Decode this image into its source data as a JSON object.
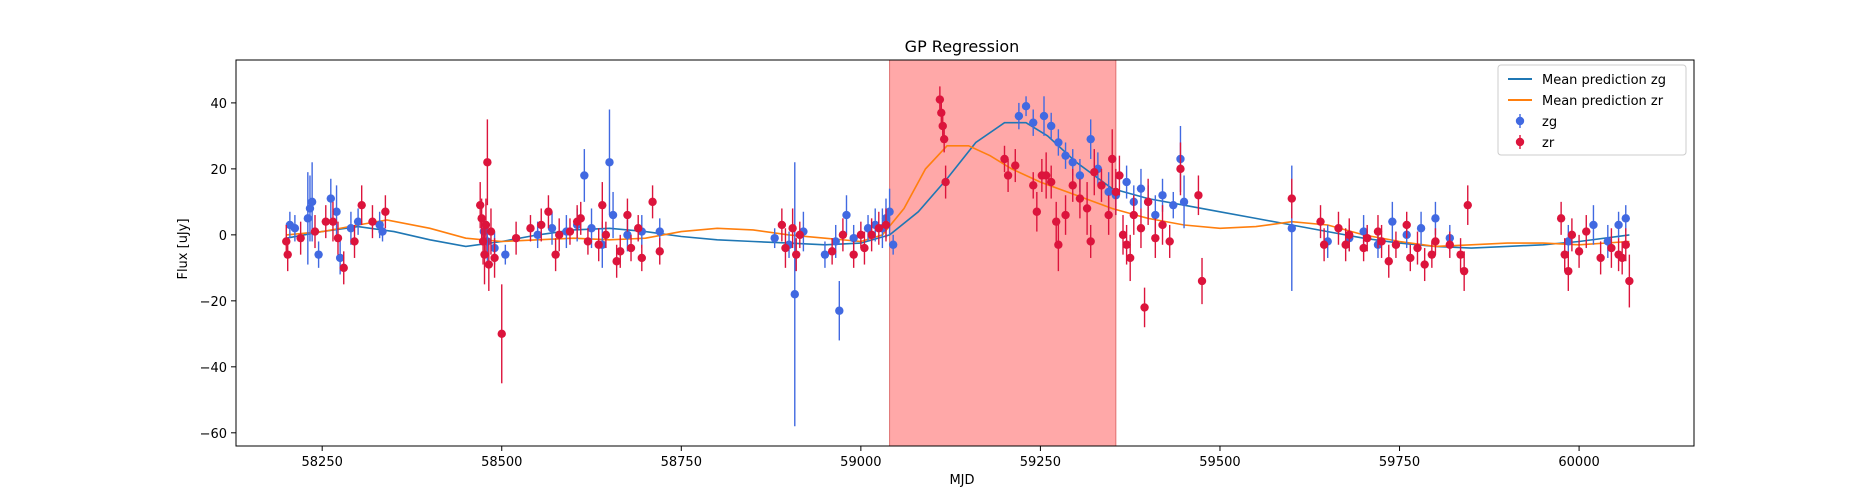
{
  "chart_data": {
    "type": "scatter",
    "title": "GP Regression",
    "xlabel": "MJD",
    "ylabel": "Flux [uJy]",
    "xlim": [
      58130,
      60160
    ],
    "ylim": [
      -64,
      53
    ],
    "xticks": [
      58250,
      58500,
      58750,
      59000,
      59250,
      59500,
      59750,
      60000
    ],
    "yticks": [
      -60,
      -40,
      -20,
      0,
      20,
      40
    ],
    "grid": false,
    "legend_position": "top-right",
    "shaded_region": {
      "x_start": 59040,
      "x_end": 59355,
      "color": "#ff9999"
    },
    "series": [
      {
        "name": "Mean prediction zg",
        "kind": "line",
        "color": "#1f77b4",
        "x": [
          58200,
          58250,
          58300,
          58350,
          58400,
          58450,
          58500,
          58550,
          58600,
          58650,
          58700,
          58750,
          58800,
          58850,
          58900,
          58950,
          59000,
          59040,
          59080,
          59120,
          59160,
          59200,
          59230,
          59260,
          59300,
          59350,
          59400,
          59450,
          59500,
          59550,
          59600,
          59650,
          59700,
          59750,
          59800,
          59850,
          59900,
          59950,
          60000,
          60070
        ],
        "y": [
          -1,
          1,
          2.5,
          1,
          -1.5,
          -3.5,
          -2,
          0,
          1.5,
          2,
          1,
          -0.5,
          -1.5,
          -2,
          -2.5,
          -3,
          -2.5,
          0,
          7,
          17,
          28,
          34,
          34,
          30,
          22,
          14,
          11,
          9,
          7,
          5,
          3,
          1,
          -1,
          -2.5,
          -3.5,
          -4,
          -3.5,
          -3,
          -2,
          0
        ]
      },
      {
        "name": "Mean prediction zr",
        "kind": "line",
        "color": "#ff7f0e",
        "x": [
          58200,
          58250,
          58300,
          58340,
          58400,
          58450,
          58500,
          58550,
          58600,
          58650,
          58700,
          58750,
          58800,
          58850,
          58900,
          58950,
          59000,
          59030,
          59060,
          59090,
          59120,
          59150,
          59180,
          59210,
          59250,
          59300,
          59350,
          59400,
          59450,
          59500,
          59550,
          59600,
          59650,
          59700,
          59750,
          59800,
          59850,
          59900,
          59950,
          60000,
          60070
        ],
        "y": [
          0,
          1,
          3,
          4.5,
          2,
          -1,
          -2,
          -1.5,
          -1,
          -1.5,
          -1,
          1,
          2,
          1.5,
          0,
          -1,
          -2,
          0,
          8,
          20,
          27,
          27,
          24,
          20,
          16,
          12,
          8,
          5,
          3,
          2,
          2.5,
          4,
          3,
          0,
          -2,
          -3.5,
          -3,
          -2.5,
          -2.5,
          -3,
          -2
        ]
      },
      {
        "name": "zg",
        "kind": "errorbar",
        "color": "#4169e1",
        "points": [
          [
            58205,
            3,
            4
          ],
          [
            58212,
            2,
            4
          ],
          [
            58230,
            5,
            14
          ],
          [
            58233,
            8,
            10
          ],
          [
            58236,
            10,
            12
          ],
          [
            58245,
            -6,
            4
          ],
          [
            58262,
            11,
            6
          ],
          [
            58270,
            7,
            8
          ],
          [
            58275,
            -7,
            5
          ],
          [
            58290,
            2,
            5
          ],
          [
            58300,
            4,
            4
          ],
          [
            58330,
            3,
            4
          ],
          [
            58334,
            1,
            3
          ],
          [
            58475,
            1,
            4
          ],
          [
            58480,
            -2,
            6
          ],
          [
            58490,
            -4,
            5
          ],
          [
            58505,
            -6,
            3
          ],
          [
            58550,
            0,
            4
          ],
          [
            58570,
            2,
            5
          ],
          [
            58590,
            1,
            5
          ],
          [
            58605,
            3,
            5
          ],
          [
            58615,
            18,
            8
          ],
          [
            58625,
            2,
            6
          ],
          [
            58640,
            -3,
            7
          ],
          [
            58650,
            22,
            16
          ],
          [
            58655,
            6,
            7
          ],
          [
            58675,
            0,
            5
          ],
          [
            58695,
            1,
            5
          ],
          [
            58720,
            1,
            4
          ],
          [
            58880,
            -1,
            3
          ],
          [
            58900,
            -3,
            4
          ],
          [
            58908,
            -18,
            40
          ],
          [
            58920,
            1,
            6
          ],
          [
            58950,
            -6,
            4
          ],
          [
            58965,
            -2,
            5
          ],
          [
            58970,
            -23,
            9
          ],
          [
            58980,
            6,
            6
          ],
          [
            58990,
            -1,
            4
          ],
          [
            59010,
            2,
            4
          ],
          [
            59020,
            3,
            5
          ],
          [
            59030,
            2,
            6
          ],
          [
            59035,
            5,
            6
          ],
          [
            59040,
            7,
            7
          ],
          [
            59045,
            -3,
            3
          ],
          [
            59220,
            36,
            4
          ],
          [
            59230,
            39,
            3
          ],
          [
            59240,
            34,
            4
          ],
          [
            59255,
            36,
            6
          ],
          [
            59265,
            33,
            4
          ],
          [
            59275,
            28,
            4
          ],
          [
            59285,
            24,
            4
          ],
          [
            59295,
            22,
            4
          ],
          [
            59305,
            18,
            5
          ],
          [
            59320,
            29,
            6
          ],
          [
            59330,
            20,
            5
          ],
          [
            59345,
            13,
            6
          ],
          [
            59355,
            12,
            6
          ],
          [
            59370,
            16,
            5
          ],
          [
            59380,
            10,
            5
          ],
          [
            59390,
            14,
            6
          ],
          [
            59400,
            10,
            5
          ],
          [
            59410,
            6,
            6
          ],
          [
            59420,
            12,
            5
          ],
          [
            59435,
            9,
            4
          ],
          [
            59445,
            23,
            10
          ],
          [
            59450,
            10,
            8
          ],
          [
            59600,
            2,
            19
          ],
          [
            59650,
            -2,
            5
          ],
          [
            59680,
            -1,
            4
          ],
          [
            59700,
            1,
            5
          ],
          [
            59720,
            -3,
            4
          ],
          [
            59740,
            4,
            6
          ],
          [
            59760,
            0,
            4
          ],
          [
            59780,
            2,
            5
          ],
          [
            59800,
            5,
            5
          ],
          [
            59820,
            -1,
            4
          ],
          [
            59985,
            -2,
            5
          ],
          [
            60020,
            3,
            6
          ],
          [
            60040,
            -2,
            5
          ],
          [
            60055,
            3,
            4
          ],
          [
            60065,
            5,
            4
          ]
        ]
      },
      {
        "name": "zr",
        "kind": "errorbar",
        "color": "#dc143c",
        "points": [
          [
            58200,
            -2,
            5
          ],
          [
            58202,
            -6,
            5
          ],
          [
            58220,
            -1,
            5
          ],
          [
            58240,
            1,
            5
          ],
          [
            58255,
            4,
            5
          ],
          [
            58265,
            4,
            6
          ],
          [
            58272,
            -1,
            5
          ],
          [
            58280,
            -10,
            5
          ],
          [
            58295,
            -2,
            5
          ],
          [
            58305,
            9,
            6
          ],
          [
            58320,
            4,
            5
          ],
          [
            58338,
            7,
            5
          ],
          [
            58470,
            9,
            7
          ],
          [
            58472,
            5,
            6
          ],
          [
            58474,
            -2,
            7
          ],
          [
            58476,
            -6,
            9
          ],
          [
            58478,
            3,
            8
          ],
          [
            58480,
            22,
            13
          ],
          [
            58482,
            -9,
            8
          ],
          [
            58485,
            1,
            7
          ],
          [
            58490,
            -7,
            6
          ],
          [
            58500,
            -30,
            15
          ],
          [
            58520,
            -1,
            5
          ],
          [
            58540,
            2,
            4
          ],
          [
            58555,
            3,
            5
          ],
          [
            58565,
            7,
            5
          ],
          [
            58575,
            -6,
            5
          ],
          [
            58580,
            0,
            5
          ],
          [
            58595,
            1,
            4
          ],
          [
            58605,
            4,
            5
          ],
          [
            58610,
            5,
            5
          ],
          [
            58620,
            -2,
            4
          ],
          [
            58635,
            -3,
            5
          ],
          [
            58640,
            9,
            7
          ],
          [
            58645,
            0,
            4
          ],
          [
            58660,
            -8,
            5
          ],
          [
            58665,
            -5,
            5
          ],
          [
            58675,
            6,
            5
          ],
          [
            58680,
            -4,
            4
          ],
          [
            58690,
            2,
            4
          ],
          [
            58695,
            -7,
            4
          ],
          [
            58710,
            10,
            5
          ],
          [
            58720,
            -5,
            4
          ],
          [
            58890,
            3,
            5
          ],
          [
            58895,
            -4,
            6
          ],
          [
            58905,
            2,
            6
          ],
          [
            58910,
            -6,
            5
          ],
          [
            58915,
            0,
            4
          ],
          [
            58960,
            -5,
            4
          ],
          [
            58975,
            0,
            5
          ],
          [
            58990,
            -6,
            4
          ],
          [
            59000,
            0,
            4
          ],
          [
            59005,
            -4,
            5
          ],
          [
            59015,
            0,
            5
          ],
          [
            59025,
            2,
            5
          ],
          [
            59035,
            3,
            5
          ],
          [
            59110,
            41,
            4
          ],
          [
            59112,
            37,
            5
          ],
          [
            59114,
            33,
            5
          ],
          [
            59116,
            29,
            4
          ],
          [
            59118,
            16,
            5
          ],
          [
            59200,
            23,
            4
          ],
          [
            59205,
            18,
            5
          ],
          [
            59215,
            21,
            5
          ],
          [
            59240,
            15,
            4
          ],
          [
            59245,
            7,
            6
          ],
          [
            59252,
            18,
            5
          ],
          [
            59258,
            18,
            7
          ],
          [
            59265,
            16,
            5
          ],
          [
            59272,
            4,
            6
          ],
          [
            59275,
            -3,
            8
          ],
          [
            59285,
            6,
            6
          ],
          [
            59295,
            15,
            5
          ],
          [
            59305,
            11,
            6
          ],
          [
            59315,
            8,
            8
          ],
          [
            59320,
            -2,
            5
          ],
          [
            59325,
            19,
            7
          ],
          [
            59335,
            15,
            5
          ],
          [
            59345,
            6,
            6
          ],
          [
            59350,
            23,
            9
          ],
          [
            59355,
            13,
            7
          ],
          [
            59360,
            18,
            6
          ],
          [
            59365,
            0,
            6
          ],
          [
            59370,
            -3,
            6
          ],
          [
            59375,
            -7,
            7
          ],
          [
            59380,
            6,
            6
          ],
          [
            59390,
            2,
            6
          ],
          [
            59395,
            -22,
            6
          ],
          [
            59400,
            10,
            7
          ],
          [
            59410,
            -1,
            6
          ],
          [
            59420,
            3,
            6
          ],
          [
            59430,
            -2,
            5
          ],
          [
            59445,
            20,
            8
          ],
          [
            59470,
            12,
            6
          ],
          [
            59475,
            -14,
            7
          ],
          [
            59600,
            11,
            6
          ],
          [
            59640,
            4,
            5
          ],
          [
            59645,
            -3,
            5
          ],
          [
            59665,
            2,
            5
          ],
          [
            59675,
            -3,
            5
          ],
          [
            59680,
            0,
            5
          ],
          [
            59700,
            -4,
            4
          ],
          [
            59705,
            -1,
            4
          ],
          [
            59720,
            1,
            5
          ],
          [
            59725,
            -2,
            5
          ],
          [
            59735,
            -8,
            5
          ],
          [
            59745,
            -3,
            4
          ],
          [
            59760,
            3,
            4
          ],
          [
            59765,
            -7,
            4
          ],
          [
            59775,
            -4,
            5
          ],
          [
            59785,
            -9,
            5
          ],
          [
            59795,
            -6,
            4
          ],
          [
            59800,
            -2,
            4
          ],
          [
            59820,
            -3,
            4
          ],
          [
            59835,
            -6,
            5
          ],
          [
            59840,
            -11,
            6
          ],
          [
            59845,
            9,
            6
          ],
          [
            59975,
            5,
            5
          ],
          [
            59980,
            -6,
            5
          ],
          [
            59985,
            -11,
            6
          ],
          [
            59990,
            0,
            5
          ],
          [
            60000,
            -5,
            5
          ],
          [
            60010,
            1,
            5
          ],
          [
            60030,
            -7,
            5
          ],
          [
            60045,
            -4,
            6
          ],
          [
            60055,
            -6,
            5
          ],
          [
            60060,
            -7,
            5
          ],
          [
            60065,
            -3,
            5
          ],
          [
            60070,
            -14,
            8
          ]
        ]
      }
    ]
  }
}
